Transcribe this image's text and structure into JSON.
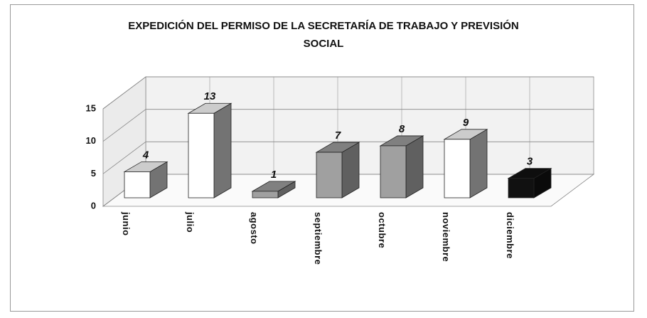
{
  "chart_data": {
    "type": "bar3d",
    "title": "EXPEDICIÓN DEL PERMISO DE LA SECRETARÍA DE TRABAJO Y PREVISIÓN SOCIAL",
    "categories": [
      "junio",
      "julio",
      "agosto",
      "septiembre",
      "octubre",
      "noviembre",
      "diciembre"
    ],
    "values": [
      4,
      13,
      1,
      7,
      8,
      9,
      3
    ],
    "colors": [
      "#ffffff",
      "#ffffff",
      "#a0a0a0",
      "#a0a0a0",
      "#a0a0a0",
      "#ffffff",
      "#111111"
    ],
    "ylim": [
      0,
      15
    ],
    "yticks": [
      0,
      5,
      10,
      15
    ],
    "grid": true
  }
}
